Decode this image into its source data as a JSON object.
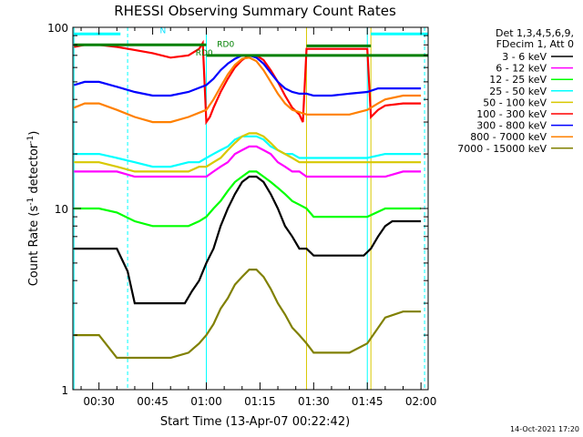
{
  "chart_data": {
    "type": "line",
    "title": "RHESSI Observing Summary Count Rates",
    "xlabel": "Start Time (13-Apr-07 00:22:42)",
    "ylabel": "Count Rate (s⁻¹ detector⁻¹)",
    "ylabel_main": "Count Rate (s",
    "ylabel_sup1": "-1",
    "ylabel_mid": " detector",
    "ylabel_sup2": "-1",
    "ylabel_end": ")",
    "y_scale": "log",
    "ylim": [
      1,
      100
    ],
    "x_unit": "minutes",
    "xlim": [
      22.7,
      122
    ],
    "x_ticks": [
      {
        "v": 30,
        "label": "00:30"
      },
      {
        "v": 45,
        "label": "00:45"
      },
      {
        "v": 60,
        "label": "01:00"
      },
      {
        "v": 75,
        "label": "01:15"
      },
      {
        "v": 90,
        "label": "01:30"
      },
      {
        "v": 105,
        "label": "01:45"
      },
      {
        "v": 120,
        "label": "02:00"
      }
    ],
    "y_tick_labels": [
      {
        "v": 1,
        "label": "1"
      },
      {
        "v": 10,
        "label": "10"
      },
      {
        "v": 100,
        "label": "100"
      }
    ],
    "legend_header": [
      "Det 1,3,4,5,6,9,",
      "FDecim 1, Att 0"
    ],
    "legend_position": "right",
    "series": [
      {
        "name": "3 - 6 keV",
        "color": "#000000",
        "x": [
          23,
          30,
          35,
          38,
          40,
          42,
          44,
          46,
          48,
          50,
          52,
          54,
          56,
          58,
          60,
          62,
          64,
          66,
          68,
          70,
          72,
          74,
          76,
          78,
          80,
          82,
          84,
          86,
          88,
          90,
          92,
          94,
          96,
          98,
          100,
          102,
          104,
          106,
          108,
          110,
          112,
          114,
          116,
          118,
          120
        ],
        "y": [
          6,
          6,
          6,
          4.5,
          3,
          3,
          3,
          3,
          3,
          3,
          3,
          3,
          3.5,
          4,
          5,
          6,
          8,
          10,
          12,
          14,
          15,
          15,
          14,
          12,
          10,
          8,
          7,
          6,
          6,
          5.5,
          5.5,
          5.5,
          5.5,
          5.5,
          5.5,
          5.5,
          5.5,
          6,
          7,
          8,
          8.5,
          8.5,
          8.5,
          8.5,
          8.5
        ]
      },
      {
        "name": "6 - 12 keV",
        "color": "#ff00ff",
        "x": [
          23,
          30,
          35,
          40,
          45,
          50,
          55,
          58,
          60,
          62,
          64,
          66,
          68,
          70,
          72,
          74,
          76,
          78,
          80,
          82,
          84,
          86,
          88,
          90,
          95,
          100,
          105,
          110,
          115,
          120
        ],
        "y": [
          16,
          16,
          16,
          15,
          15,
          15,
          15,
          15,
          15,
          16,
          17,
          18,
          20,
          21,
          22,
          22,
          21,
          20,
          18,
          17,
          16,
          16,
          15,
          15,
          15,
          15,
          15,
          15,
          16,
          16
        ]
      },
      {
        "name": "12 - 25 keV",
        "color": "#00ff00",
        "x": [
          23,
          30,
          35,
          40,
          45,
          50,
          55,
          58,
          60,
          62,
          64,
          66,
          68,
          70,
          72,
          74,
          76,
          78,
          80,
          82,
          84,
          86,
          88,
          90,
          95,
          100,
          105,
          110,
          115,
          120
        ],
        "y": [
          10,
          10,
          9.5,
          8.5,
          8,
          8,
          8,
          8.5,
          9,
          10,
          11,
          12.5,
          14,
          15,
          16,
          16,
          15,
          14,
          13,
          12,
          11,
          10.5,
          10,
          9,
          9,
          9,
          9,
          10,
          10,
          10
        ]
      },
      {
        "name": "25 - 50 keV",
        "color": "#00ffff",
        "x": [
          23,
          30,
          35,
          40,
          45,
          50,
          55,
          58,
          60,
          62,
          64,
          66,
          68,
          70,
          72,
          74,
          76,
          78,
          80,
          82,
          84,
          86,
          88,
          90,
          95,
          100,
          105,
          110,
          115,
          120
        ],
        "y": [
          20,
          20,
          19,
          18,
          17,
          17,
          18,
          18,
          19,
          20,
          21,
          22,
          24,
          25,
          25,
          25,
          24,
          22,
          21,
          20,
          20,
          19,
          19,
          19,
          19,
          19,
          19,
          20,
          20,
          20
        ]
      },
      {
        "name": "50 - 100 keV",
        "color": "#d8c800",
        "x": [
          23,
          30,
          35,
          40,
          45,
          50,
          55,
          58,
          60,
          62,
          64,
          66,
          68,
          70,
          72,
          74,
          76,
          78,
          80,
          82,
          84,
          86,
          88,
          90,
          95,
          100,
          105,
          110,
          115,
          120
        ],
        "y": [
          18,
          18,
          17,
          16,
          16,
          16,
          16,
          17,
          17,
          18,
          19,
          21,
          23,
          25,
          26,
          26,
          25,
          23,
          21,
          20,
          19,
          18,
          18,
          18,
          18,
          18,
          18,
          18,
          18,
          18
        ]
      },
      {
        "name": "100 - 300 keV",
        "color": "#ff0000",
        "x": [
          23,
          26,
          30,
          35,
          40,
          45,
          50,
          55,
          58,
          59,
          60,
          61,
          62,
          64,
          66,
          68,
          70,
          72,
          74,
          76,
          78,
          80,
          82,
          84,
          86,
          87,
          88,
          90,
          95,
          100,
          103,
          105,
          106,
          108,
          110,
          115,
          120
        ],
        "y": [
          78,
          80,
          80,
          78,
          75,
          72,
          68,
          70,
          76,
          82,
          30,
          32,
          36,
          44,
          52,
          60,
          66,
          70,
          70,
          66,
          58,
          50,
          42,
          36,
          33,
          30,
          76,
          76,
          76,
          76,
          76,
          76,
          32,
          35,
          37,
          38,
          38
        ]
      },
      {
        "name": "300 - 800 keV",
        "color": "#0000ff",
        "x": [
          23,
          26,
          30,
          35,
          40,
          45,
          50,
          55,
          60,
          62,
          64,
          66,
          68,
          70,
          72,
          74,
          76,
          78,
          80,
          82,
          84,
          86,
          88,
          90,
          95,
          100,
          105,
          108,
          110,
          115,
          120
        ],
        "y": [
          48,
          50,
          50,
          47,
          44,
          42,
          42,
          44,
          48,
          52,
          58,
          63,
          67,
          70,
          70,
          68,
          63,
          56,
          50,
          46,
          44,
          43,
          43,
          42,
          42,
          43,
          44,
          46,
          46,
          46,
          46
        ]
      },
      {
        "name": "800 - 7000 keV",
        "color": "#ff8000",
        "x": [
          23,
          26,
          30,
          35,
          40,
          45,
          50,
          55,
          60,
          62,
          64,
          66,
          68,
          70,
          72,
          74,
          76,
          78,
          80,
          82,
          84,
          86,
          88,
          90,
          95,
          100,
          105,
          108,
          110,
          115,
          120
        ],
        "y": [
          36,
          38,
          38,
          35,
          32,
          30,
          30,
          32,
          35,
          40,
          47,
          55,
          62,
          67,
          68,
          65,
          58,
          50,
          43,
          38,
          35,
          34,
          33,
          33,
          33,
          33,
          35,
          38,
          40,
          42,
          42
        ]
      },
      {
        "name": "7000 - 15000 keV",
        "color": "#808000",
        "x": [
          23,
          30,
          35,
          40,
          45,
          50,
          55,
          58,
          60,
          62,
          64,
          66,
          68,
          70,
          72,
          74,
          76,
          78,
          80,
          82,
          84,
          86,
          88,
          90,
          95,
          100,
          105,
          110,
          115,
          120
        ],
        "y": [
          2,
          2,
          1.5,
          1.5,
          1.5,
          1.5,
          1.6,
          1.8,
          2,
          2.3,
          2.8,
          3.2,
          3.8,
          4.2,
          4.6,
          4.6,
          4.2,
          3.6,
          3,
          2.6,
          2.2,
          2,
          1.8,
          1.6,
          1.6,
          1.6,
          1.8,
          2.5,
          2.7,
          2.7
        ]
      }
    ],
    "annotations": [
      {
        "label": "N",
        "x": 47,
        "y": 93,
        "color": "#00e0ff"
      },
      {
        "label": "RD0",
        "x": 63,
        "y": 78,
        "color": "#008000"
      },
      {
        "label": "RD0",
        "x": 57,
        "y": 70,
        "color": "#008000"
      }
    ],
    "segments": [
      {
        "color": "#00ffff",
        "x1": 23,
        "x2": 36,
        "y": 92
      },
      {
        "color": "#00ffff",
        "x1": 106,
        "x2": 122,
        "y": 92
      },
      {
        "color": "#008000",
        "x1": 23,
        "x2": 60,
        "y": 80
      },
      {
        "color": "#008000",
        "x1": 60,
        "x2": 122,
        "y": 70
      },
      {
        "color": "#008000",
        "x1": 88,
        "x2": 106,
        "y": 79
      }
    ],
    "vlines": [
      {
        "x": 23,
        "color": "#00ffff",
        "style": "solid"
      },
      {
        "x": 38,
        "color": "#00ffff",
        "style": "dashed"
      },
      {
        "x": 60,
        "color": "#00ffff",
        "style": "solid"
      },
      {
        "x": 88,
        "color": "#d8c800",
        "style": "solid"
      },
      {
        "x": 105,
        "color": "#00ffff",
        "style": "solid"
      },
      {
        "x": 106,
        "color": "#d8c800",
        "style": "solid"
      },
      {
        "x": 121,
        "color": "#00ffff",
        "style": "dashed"
      }
    ]
  },
  "footer_timestamp": "14-Oct-2021 17:20"
}
